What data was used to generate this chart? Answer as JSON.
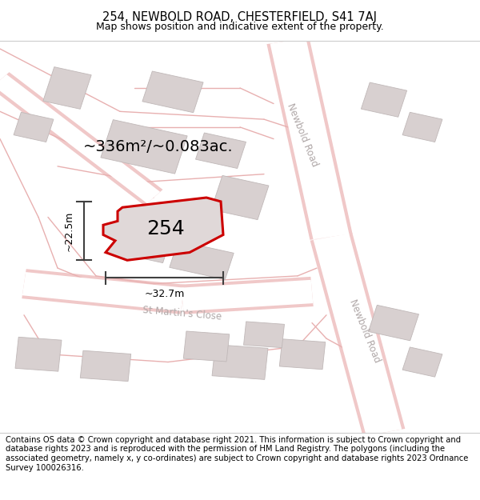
{
  "title": "254, NEWBOLD ROAD, CHESTERFIELD, S41 7AJ",
  "subtitle": "Map shows position and indicative extent of the property.",
  "footer": "Contains OS data © Crown copyright and database right 2021. This information is subject to Crown copyright and database rights 2023 and is reproduced with the permission of HM Land Registry. The polygons (including the associated geometry, namely x, y co-ordinates) are subject to Crown copyright and database rights 2023 Ordnance Survey 100026316.",
  "area_label": "~336m²/~0.083ac.",
  "width_label": "~32.7m",
  "height_label": "~22.5m",
  "property_number": "254",
  "map_bg": "#f7f2f2",
  "road_color": "#f0c8c8",
  "road_outline": "#e8b0b0",
  "building_fill": "#d8d0d0",
  "building_edge": "#c0b8b8",
  "property_fill": "#e0d8d8",
  "property_outline": "#cc0000",
  "road_label_color": "#b0a8a8",
  "dim_line_color": "#404040",
  "title_fontsize": 10.5,
  "subtitle_fontsize": 9,
  "footer_fontsize": 7.2,
  "area_fontsize": 14,
  "num_fontsize": 18,
  "dim_fontsize": 9,
  "road_label_fontsize": 8.5
}
